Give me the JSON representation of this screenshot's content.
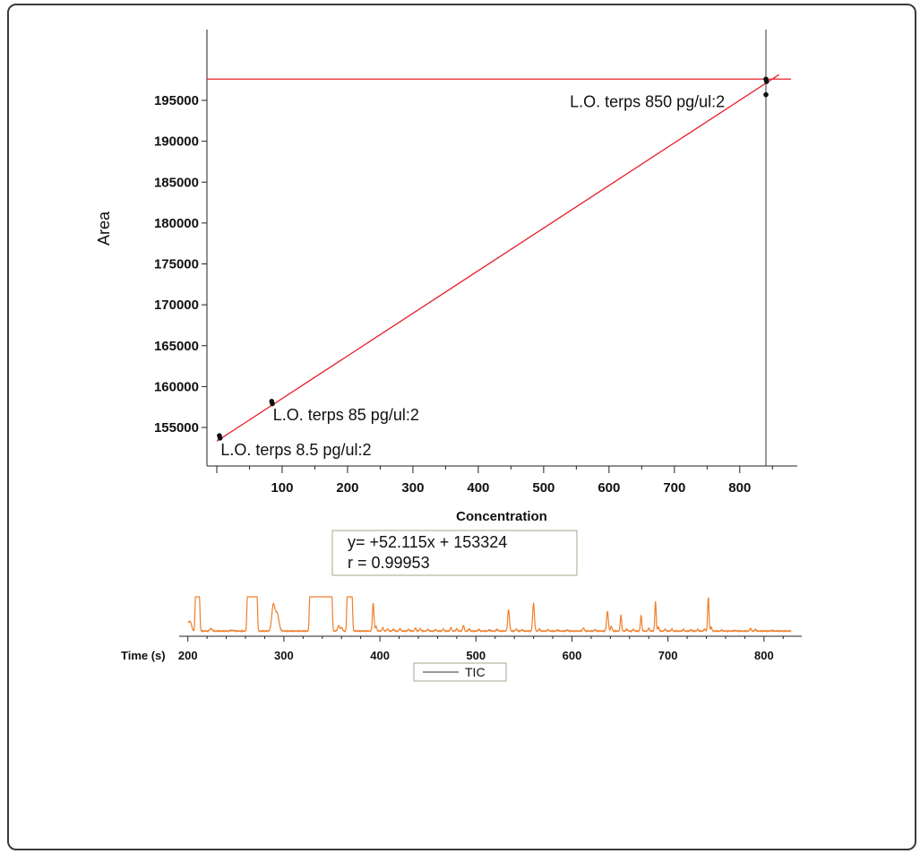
{
  "chart_data": [
    {
      "type": "scatter",
      "title": "",
      "xlabel": "Concentration",
      "ylabel": "Area",
      "xlim": [
        -20,
        880
      ],
      "ylim": [
        149300,
        203000
      ],
      "xticks": [
        100,
        200,
        300,
        400,
        500,
        600,
        700,
        800
      ],
      "yticks": [
        155000,
        160000,
        165000,
        170000,
        175000,
        180000,
        185000,
        190000,
        195000
      ],
      "xtick_labels": [
        "100",
        "200",
        "300",
        "400",
        "500",
        "600",
        "700",
        "800"
      ],
      "ytick_labels": [
        "155000",
        "160000",
        "165000",
        "170000",
        "175000",
        "180000",
        "185000",
        "190000",
        "195000"
      ],
      "series": [
        {
          "points": [
            {
              "x": 4,
              "y": 154000
            },
            {
              "x": 5,
              "y": 153700
            },
            {
              "x": 84,
              "y": 158200
            },
            {
              "x": 85,
              "y": 157900
            },
            {
              "x": 840,
              "y": 197600
            },
            {
              "x": 841,
              "y": 197300
            },
            {
              "x": 840,
              "y": 195700
            }
          ]
        }
      ],
      "fit": {
        "slope": 52.115,
        "intercept": 153324,
        "x_range": [
          0,
          860
        ],
        "color": "#e8202a"
      },
      "reference_lines": {
        "horizontal_y": 197600,
        "vertical_x": 840
      },
      "annotations": [
        {
          "text": "L.O. terps 8.5 pg/ul:2",
          "x": 6,
          "y": 151600
        },
        {
          "text": "L.O. terps 85 pg/ul:2",
          "x": 86,
          "y": 155900
        },
        {
          "text": "L.O. terps 850 pg/ul:2",
          "x": 540,
          "y": 194200
        }
      ],
      "equation_box": {
        "line1": "y= +52.115x + 153324",
        "line2": "r = 0.99953"
      },
      "grid": false
    },
    {
      "type": "line",
      "title": "",
      "xlabel": "Time (s)",
      "xlim": [
        190,
        830
      ],
      "ylim": [
        0,
        100
      ],
      "xticks": [
        200,
        300,
        400,
        500,
        600,
        700,
        800
      ],
      "xtick_labels": [
        "200",
        "300",
        "400",
        "500",
        "600",
        "700",
        "800"
      ],
      "legend": {
        "label": "TIC",
        "position": "bottom-center"
      },
      "color": "#f07f2a",
      "baseline": 2,
      "peaks": [
        {
          "t": 200,
          "h": 26,
          "w": 1.8
        },
        {
          "t": 203,
          "h": 18,
          "w": 1.2
        },
        {
          "t": 224,
          "h": 7,
          "w": 1.2
        },
        {
          "t": 246,
          "h": 2,
          "w": 2
        },
        {
          "t": 289,
          "h": 74,
          "w": 1.6
        },
        {
          "t": 293,
          "h": 50,
          "w": 1.8
        },
        {
          "t": 357,
          "h": 16,
          "w": 1
        },
        {
          "t": 360,
          "h": 10,
          "w": 1
        },
        {
          "t": 393,
          "h": 80,
          "w": 0.8
        },
        {
          "t": 396,
          "h": 14,
          "w": 0.8
        },
        {
          "t": 403,
          "h": 9,
          "w": 0.8
        },
        {
          "t": 408,
          "h": 6,
          "w": 0.8
        },
        {
          "t": 414,
          "h": 5,
          "w": 0.8
        },
        {
          "t": 421,
          "h": 7,
          "w": 0.8
        },
        {
          "t": 430,
          "h": 5,
          "w": 0.8
        },
        {
          "t": 437,
          "h": 9,
          "w": 0.8
        },
        {
          "t": 442,
          "h": 7,
          "w": 0.8
        },
        {
          "t": 450,
          "h": 5,
          "w": 0.8
        },
        {
          "t": 458,
          "h": 4,
          "w": 0.8
        },
        {
          "t": 466,
          "h": 6,
          "w": 0.8
        },
        {
          "t": 474,
          "h": 10,
          "w": 0.8
        },
        {
          "t": 480,
          "h": 6,
          "w": 0.8
        },
        {
          "t": 487,
          "h": 16,
          "w": 0.8
        },
        {
          "t": 493,
          "h": 6,
          "w": 0.8
        },
        {
          "t": 503,
          "h": 5,
          "w": 0.8
        },
        {
          "t": 514,
          "h": 4,
          "w": 0.8
        },
        {
          "t": 522,
          "h": 5,
          "w": 0.8
        },
        {
          "t": 534,
          "h": 61,
          "w": 0.9
        },
        {
          "t": 542,
          "h": 6,
          "w": 0.8
        },
        {
          "t": 548,
          "h": 4,
          "w": 0.8
        },
        {
          "t": 560,
          "h": 79,
          "w": 0.9
        },
        {
          "t": 566,
          "h": 6,
          "w": 0.8
        },
        {
          "t": 575,
          "h": 4,
          "w": 0.8
        },
        {
          "t": 585,
          "h": 3,
          "w": 0.8
        },
        {
          "t": 595,
          "h": 3,
          "w": 0.8
        },
        {
          "t": 612,
          "h": 9,
          "w": 0.8
        },
        {
          "t": 624,
          "h": 4,
          "w": 0.8
        },
        {
          "t": 637,
          "h": 56,
          "w": 0.9
        },
        {
          "t": 641,
          "h": 14,
          "w": 0.8
        },
        {
          "t": 651,
          "h": 46,
          "w": 0.7
        },
        {
          "t": 657,
          "h": 6,
          "w": 0.7
        },
        {
          "t": 664,
          "h": 5,
          "w": 0.7
        },
        {
          "t": 672,
          "h": 44,
          "w": 0.7
        },
        {
          "t": 680,
          "h": 8,
          "w": 0.7
        },
        {
          "t": 687,
          "h": 84,
          "w": 0.7
        },
        {
          "t": 690,
          "h": 12,
          "w": 0.7
        },
        {
          "t": 697,
          "h": 6,
          "w": 0.7
        },
        {
          "t": 704,
          "h": 6,
          "w": 0.7
        },
        {
          "t": 716,
          "h": 5,
          "w": 0.7
        },
        {
          "t": 724,
          "h": 4,
          "w": 0.7
        },
        {
          "t": 731,
          "h": 5,
          "w": 0.7
        },
        {
          "t": 738,
          "h": 6,
          "w": 0.7
        },
        {
          "t": 742,
          "h": 96,
          "w": 0.7
        },
        {
          "t": 745,
          "h": 12,
          "w": 0.7
        },
        {
          "t": 756,
          "h": 3,
          "w": 0.7
        },
        {
          "t": 770,
          "h": 2,
          "w": 0.7
        },
        {
          "t": 786,
          "h": 8,
          "w": 0.7
        },
        {
          "t": 791,
          "h": 5,
          "w": 0.7
        },
        {
          "t": 808,
          "h": 2,
          "w": 0.7
        }
      ],
      "saturated_regions": [
        [
          208,
          212
        ],
        [
          262,
          272
        ],
        [
          327,
          350
        ],
        [
          366,
          371
        ]
      ]
    }
  ]
}
